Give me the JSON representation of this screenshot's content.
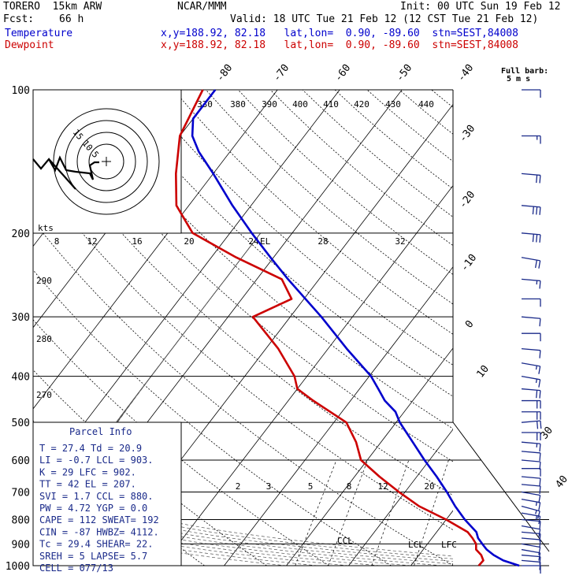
{
  "header": {
    "model": "TORERO  15km ARW",
    "center": "NCAR/MMM",
    "init": "Init: 00 UTC Sun 19 Feb 12",
    "fcst_label": "Fcst:",
    "fcst_value": "66 h",
    "valid": "Valid: 18 UTC Tue 21 Feb 12 (12 CST Tue 21 Feb 12)",
    "temp_label": "Temperature",
    "dew_label": "Dewpoint",
    "temp_loc": "x,y=188.92, 82.18   lat,lon=  0.90, -89.60  stn=SEST,84008",
    "dew_loc": "x,y=188.92, 82.18   lat,lon=  0.90, -89.60  stn=SEST,84008",
    "barb_key": "Full barb:",
    "barb_unit": "5 m s",
    "colors": {
      "temperature": "#0000cc",
      "dewpoint": "#cc0000",
      "wind": "#1a2a8a"
    }
  },
  "chart_data": {
    "type": "skewt",
    "pressure_ticks": [
      "100",
      "200",
      "300",
      "400",
      "500",
      "600",
      "700",
      "800",
      "900",
      "1000"
    ],
    "pressure_values": [
      100,
      200,
      300,
      400,
      500,
      600,
      700,
      800,
      900,
      1000
    ],
    "isotherm_labels": [
      "-80",
      "-70",
      "-60",
      "-50",
      "-40",
      "-30",
      "-20",
      "-10",
      "0",
      "10",
      "30",
      "40"
    ],
    "theta_labels": [
      "330",
      "380",
      "390",
      "400",
      "410",
      "420",
      "430",
      "440"
    ],
    "mixing_ratio_labels": [
      "2",
      "3",
      "5",
      "8",
      "12",
      "20"
    ],
    "lower_theta_labels": [
      "290",
      "280",
      "270"
    ],
    "temperature": {
      "p": [
        1000,
        975,
        950,
        925,
        900,
        875,
        850,
        800,
        750,
        700,
        650,
        600,
        550,
        500,
        475,
        450,
        425,
        400,
        350,
        300,
        250,
        225,
        200,
        175,
        150,
        135,
        125,
        115,
        100
      ],
      "t": [
        27.4,
        24.2,
        22.0,
        20.2,
        18.8,
        17.4,
        16.4,
        13.0,
        9.8,
        6.7,
        3.2,
        -0.8,
        -4.9,
        -9.4,
        -11.4,
        -14.5,
        -17.0,
        -19.7,
        -27.0,
        -35.0,
        -45.0,
        -50.5,
        -56.5,
        -63.0,
        -70.0,
        -75.0,
        -78.0,
        -80.0,
        -80.0
      ]
    },
    "dewpoint": {
      "p": [
        1000,
        975,
        950,
        925,
        900,
        875,
        850,
        800,
        750,
        700,
        650,
        600,
        550,
        500,
        450,
        425,
        400,
        350,
        300,
        275,
        250,
        225,
        200,
        175,
        150,
        125,
        100
      ],
      "td": [
        20.9,
        21.0,
        20.0,
        18.5,
        17.8,
        16.5,
        15.0,
        10.0,
        4.0,
        -1.0,
        -6.0,
        -11.0,
        -14.0,
        -18.0,
        -26.0,
        -30.0,
        -32.0,
        -38.0,
        -46.0,
        -42.0,
        -46.0,
        -56.0,
        -66.0,
        -72.0,
        -76.0,
        -80.0,
        -82.0
      ]
    },
    "hodograph": {
      "ring_labels": [
        "15",
        "10",
        "5"
      ],
      "unit": "kts",
      "speed_scale": [
        "8",
        "12",
        "16",
        "20",
        "24",
        "28",
        "32"
      ],
      "el_label": "EL"
    },
    "parcel_markers": [
      "CCL",
      "LCL",
      "LFC"
    ],
    "parcel_info": {
      "title": "Parcel Info",
      "rows": [
        "T  =   27.4  Td =  20.9",
        "LI =   -0.7  LCL =  903.",
        "K  =     29  LFC =  902.",
        "TT =     42  EL  =  207.",
        "SVI =   1.7  CCL =  880.",
        "PW =   4.72  YGP =   0.0",
        "CAPE =   112  SWEAT=  192",
        "CIN =    -87  HWBZ= 4112.",
        "Tc =   29.4  SHEAR=  22.",
        "SREH =    5  LAPSE=  5.7",
        "CELL = 077/13"
      ]
    },
    "wind_barbs": {
      "units": "m/s",
      "p": [
        100,
        125,
        150,
        175,
        200,
        225,
        250,
        275,
        300,
        325,
        350,
        375,
        400,
        425,
        450,
        475,
        500,
        525,
        550,
        575,
        600,
        625,
        650,
        675,
        700,
        725,
        750,
        775,
        800,
        825,
        850,
        875,
        900,
        925,
        950,
        975,
        1000
      ],
      "dir": [
        90,
        90,
        95,
        95,
        95,
        100,
        95,
        90,
        95,
        90,
        95,
        100,
        100,
        95,
        90,
        90,
        85,
        90,
        95,
        95,
        95,
        90,
        95,
        95,
        100,
        100,
        105,
        100,
        95,
        100,
        95,
        95,
        100,
        100,
        95,
        95,
        90
      ],
      "spd": [
        7,
        9,
        12,
        15,
        16,
        12,
        9,
        7,
        6,
        5,
        7,
        8,
        9,
        10,
        11,
        12,
        12,
        11,
        9,
        7,
        6,
        5,
        5,
        6,
        7,
        8,
        9,
        8,
        7,
        6,
        6,
        7,
        7,
        6,
        6,
        5,
        5
      ]
    }
  }
}
